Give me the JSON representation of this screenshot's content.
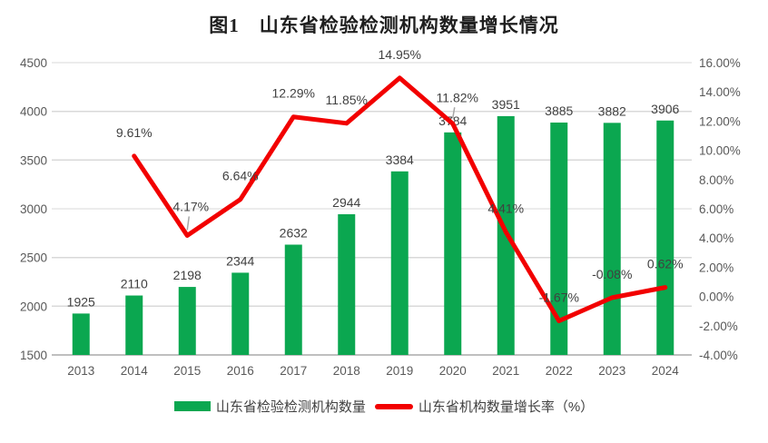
{
  "title": "图1　山东省检验检测机构数量增长情况",
  "legend": {
    "items": [
      {
        "label": "山东省检验检测机构数量",
        "swatch": "bar-swatch",
        "color": "#0ba750"
      },
      {
        "label": "山东省机构数量增长率（%）",
        "swatch": "line-swatch",
        "color": "#f20000"
      }
    ]
  },
  "colors": {
    "bar": "#0ba750",
    "line": "#f20000",
    "grid": "#d9d9d9",
    "axis_line": "#bfbfbf",
    "axis_text": "#595959",
    "data_label_text": "#404040",
    "leader_line": "#a6a6a6",
    "title_text": "#1f1f1f"
  },
  "chart_data": {
    "type": "bar",
    "title": "图1　山东省检验检测机构数量增长情况",
    "categories": [
      "2013",
      "2014",
      "2015",
      "2016",
      "2017",
      "2018",
      "2019",
      "2020",
      "2021",
      "2022",
      "2023",
      "2024"
    ],
    "series": [
      {
        "name": "山东省检验检测机构数量",
        "type": "bar",
        "axis": "left",
        "color": "#0ba750",
        "values": [
          1925,
          2110,
          2198,
          2344,
          2632,
          2944,
          3384,
          3784,
          3951,
          3885,
          3882,
          3906
        ]
      },
      {
        "name": "山东省机构数量增长率（%）",
        "type": "line",
        "axis": "right",
        "color": "#f20000",
        "values": [
          null,
          9.61,
          4.17,
          6.64,
          12.29,
          11.85,
          14.95,
          11.82,
          4.41,
          -1.67,
          -0.08,
          0.62
        ],
        "point_labels": [
          null,
          "9.61%",
          "4.17%",
          "6.64%",
          "12.29%",
          "11.85%",
          "14.95%",
          "11.82%",
          "4.41%",
          "-1.67%",
          "-0.08%",
          "0.62%"
        ]
      }
    ],
    "left_axis": {
      "min": 1500,
      "max": 4500,
      "step": 500,
      "tick_labels": [
        "4500",
        "4000",
        "3500",
        "3000",
        "2500",
        "2000",
        "1500"
      ]
    },
    "right_axis": {
      "min": -4,
      "max": 16,
      "step": 2,
      "tick_labels": [
        "16.00%",
        "14.00%",
        "12.00%",
        "10.00%",
        "8.00%",
        "6.00%",
        "4.00%",
        "2.00%",
        "0.00%",
        "-2.00%",
        "-4.00%"
      ]
    },
    "grid": "horizontal",
    "legend_position": "bottom",
    "label_overrides": {
      "2": {
        "dx": 4,
        "dy": -27,
        "leader": true
      },
      "7": {
        "dx": 5,
        "dy": -24,
        "leader": true
      }
    }
  }
}
